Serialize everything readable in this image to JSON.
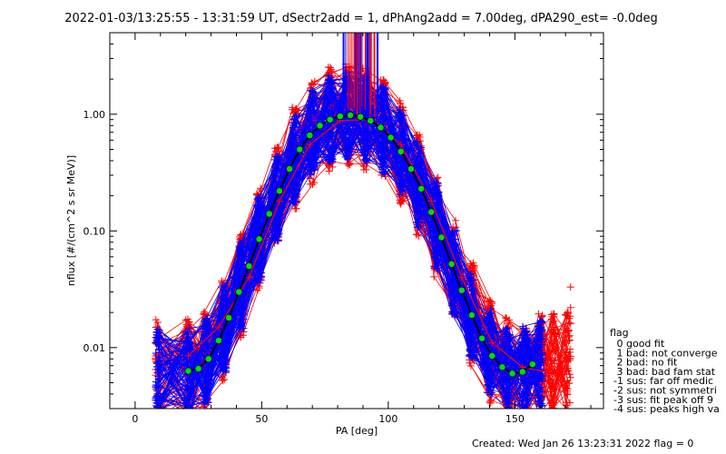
{
  "chart_data": {
    "type": "line",
    "title": "2022-01-03/13:25:55 - 13:31:59 UT, dSectr2add = 1, dPhAng2add = 7.00deg, dPA290_est=  -0.0deg",
    "xlabel": "PA [deg]",
    "ylabel": "nflux [#/(cm^2 s sr MeV)]",
    "xlim": [
      -10,
      185
    ],
    "ylim": [
      0.003,
      5
    ],
    "y_scale": "log",
    "x_ticks": [
      0,
      50,
      100,
      150
    ],
    "x_tick_labels": [
      "0",
      "50",
      "100",
      "150"
    ],
    "y_ticks": [
      0.01,
      0.1,
      1.0
    ],
    "y_tick_labels": [
      "0.01",
      "0.10",
      "1.00"
    ],
    "colors": {
      "flag_0": "#0000ff",
      "flag_bad": "#ff0000",
      "fit": "#00dd00",
      "fit_edge": "#000000"
    },
    "fit_curve": {
      "name": "",
      "x": [
        21,
        25,
        29,
        33,
        37,
        41,
        45,
        49,
        53,
        57,
        61,
        65,
        69,
        73,
        77,
        81,
        85,
        89,
        93,
        97,
        101,
        105,
        109,
        113,
        117,
        121,
        125,
        129,
        133,
        137,
        141,
        145,
        149,
        153,
        157
      ],
      "y": [
        0.0063,
        0.0066,
        0.008,
        0.0115,
        0.018,
        0.03,
        0.05,
        0.085,
        0.14,
        0.22,
        0.34,
        0.5,
        0.66,
        0.8,
        0.9,
        0.96,
        0.98,
        0.95,
        0.88,
        0.77,
        0.63,
        0.48,
        0.34,
        0.23,
        0.145,
        0.088,
        0.052,
        0.031,
        0.019,
        0.012,
        0.0085,
        0.0068,
        0.006,
        0.0062,
        0.0072
      ]
    },
    "series": [
      {
        "name": "",
        "color": "#0000ff",
        "x": [
          21,
          33,
          45,
          57,
          69,
          81,
          93,
          105,
          117,
          129,
          141,
          153,
          160
        ],
        "y": [
          0.0075,
          0.012,
          0.06,
          0.25,
          0.7,
          0.95,
          0.92,
          0.45,
          0.14,
          0.03,
          0.0095,
          0.0062,
          0.0075
        ]
      },
      {
        "name": "",
        "color": "#ff0000",
        "x": [
          21,
          33,
          45,
          57,
          69,
          81,
          93,
          105,
          117,
          129,
          141,
          153,
          165
        ],
        "y": [
          0.0085,
          0.015,
          0.04,
          0.18,
          0.55,
          0.88,
          0.9,
          0.55,
          0.18,
          0.04,
          0.011,
          0.0068,
          0.006
        ]
      }
    ],
    "legend": {
      "placement": "bottom-right",
      "title": "flag",
      "entries": [
        " 0 good fit",
        " 1 bad: not converge",
        " 2 bad: no fit",
        " 3 bad: bad fam stat",
        "-1 sus: far off medic",
        "-2 sus: not symmetri",
        "-3 sus: fit peak off 9",
        "-4 sus: peaks high va"
      ]
    },
    "footer": "Created: Wed Jan 26 13:23:31 2022   flag = 0"
  }
}
